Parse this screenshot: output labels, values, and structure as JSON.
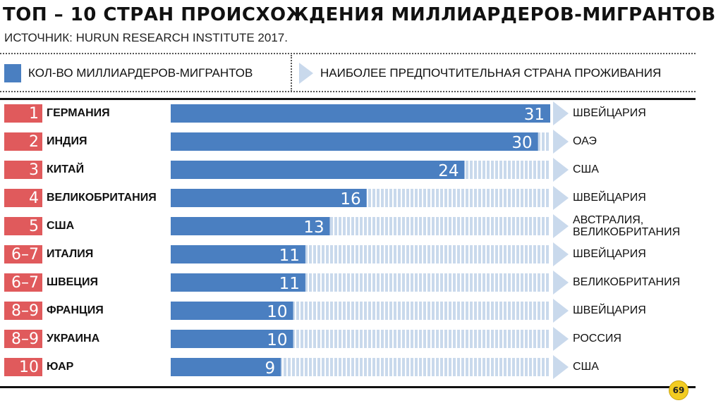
{
  "header": {
    "title": "ТОП – 10 СТРАН ПРОИСХОЖДЕНИЯ МИЛЛИАРДЕРОВ-МИГРАНТОВ",
    "source": "ИСТОЧНИК: HURUN RESEARCH INSTITUTE 2017."
  },
  "legend": {
    "count_label": "КОЛ-ВО МИЛЛИАРДЕРОВ-МИГРАНТОВ",
    "residence_label": "НАИБОЛЕЕ ПРЕДПОЧТИТЕЛЬНАЯ СТРАНА ПРОЖИВАНИЯ"
  },
  "colors": {
    "bar": "#4a7fc1",
    "stripe": "#c9d9ec",
    "rank_bg": "#e05a5c",
    "arrow": "#c9d9ec"
  },
  "logo": {
    "icon": "brand-logo-icon",
    "text": "69"
  },
  "chart_data": {
    "type": "bar",
    "orientation": "horizontal",
    "title": "ТОП – 10 СТРАН ПРОИСХОЖДЕНИЯ МИЛЛИАРДЕРОВ-МИГРАНТОВ",
    "xlim": [
      0,
      31
    ],
    "grid": false,
    "series": [
      {
        "name": "КОЛ-ВО МИЛЛИАРДЕРОВ-МИГРАНТОВ",
        "values": [
          31,
          30,
          24,
          16,
          13,
          11,
          11,
          10,
          10,
          9
        ]
      }
    ],
    "rows": [
      {
        "rank": "1",
        "country": "ГЕРМАНИЯ",
        "value": 31,
        "residence": "ШВЕЙЦАРИЯ"
      },
      {
        "rank": "2",
        "country": "ИНДИЯ",
        "value": 30,
        "residence": "ОАЭ"
      },
      {
        "rank": "3",
        "country": "КИТАЙ",
        "value": 24,
        "residence": "США"
      },
      {
        "rank": "4",
        "country": "ВЕЛИКОБРИТАНИЯ",
        "value": 16,
        "residence": "ШВЕЙЦАРИЯ"
      },
      {
        "rank": "5",
        "country": "США",
        "value": 13,
        "residence": "АВСТРАЛИЯ,\nВЕЛИКОБРИТАНИЯ"
      },
      {
        "rank": "6–7",
        "country": "ИТАЛИЯ",
        "value": 11,
        "residence": "ШВЕЙЦАРИЯ"
      },
      {
        "rank": "6–7",
        "country": "ШВЕЦИЯ",
        "value": 11,
        "residence": "ВЕЛИКОБРИТАНИЯ"
      },
      {
        "rank": "8–9",
        "country": "ФРАНЦИЯ",
        "value": 10,
        "residence": "ШВЕЙЦАРИЯ"
      },
      {
        "rank": "8–9",
        "country": "УКРАИНА",
        "value": 10,
        "residence": "РОССИЯ"
      },
      {
        "rank": "10",
        "country": "ЮАР",
        "value": 9,
        "residence": "США"
      }
    ]
  }
}
